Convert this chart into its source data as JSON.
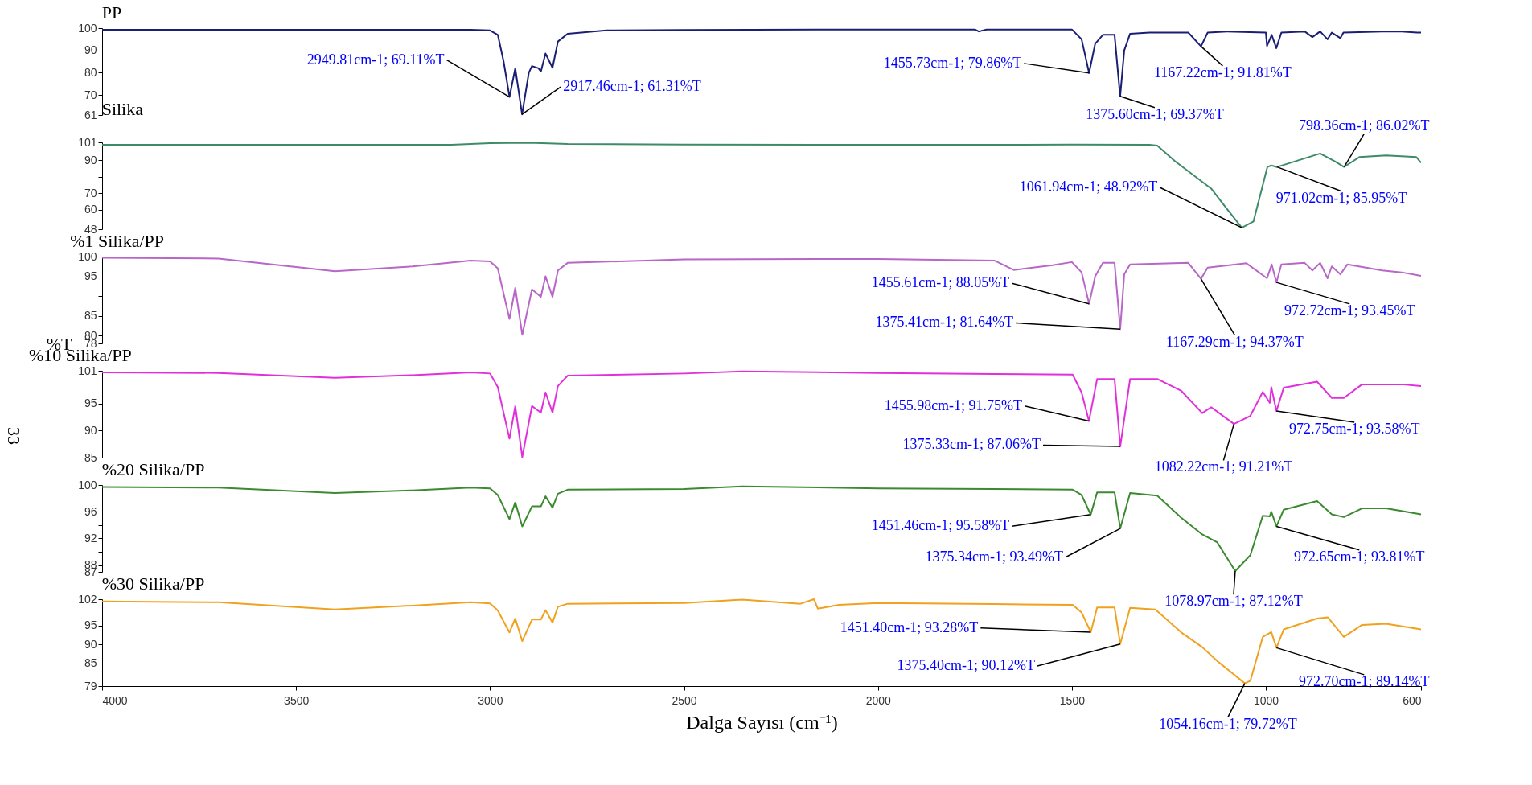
{
  "chart_data": [
    {
      "type": "line",
      "title": "PP",
      "xlim": [
        4000,
        600
      ],
      "ylim": [
        61,
        100
      ],
      "yticks": [
        100,
        90,
        80,
        70,
        61
      ],
      "tick_labels": "y",
      "series": [
        {
          "color": "#1b1f73",
          "x": [
            4000,
            3500,
            3050,
            3000,
            2980,
            2965,
            2949.81,
            2935,
            2917.46,
            2900,
            2892,
            2875,
            2869,
            2857,
            2839,
            2825,
            2800,
            2700,
            2500,
            2000,
            1750,
            1740,
            1720,
            1500,
            1475,
            1455.73,
            1440,
            1420,
            1390,
            1375.6,
            1365,
            1350,
            1300,
            1200,
            1167.22,
            1150,
            1100,
            1000,
            997,
            985,
            973,
            960,
            900,
            880,
            860,
            841,
            830,
            808,
            800,
            700,
            650,
            610,
            600
          ],
          "values": [
            99.3,
            99.3,
            99.3,
            99,
            97,
            85,
            69.11,
            82,
            61.31,
            80,
            83,
            82,
            80.5,
            88.6,
            82.2,
            94,
            97.5,
            99,
            99.2,
            99.4,
            99.4,
            98.5,
            99.4,
            99.4,
            95,
            79.86,
            93,
            97,
            97,
            69.37,
            90,
            97.5,
            98,
            98,
            91.81,
            98,
            98.5,
            98,
            92,
            97,
            91,
            98,
            98.5,
            96,
            98.5,
            95,
            98,
            95.5,
            98,
            98.5,
            98.5,
            98,
            98
          ]
        }
      ],
      "annotations": [
        {
          "text": "2949.81cm-1; 69.11%T",
          "x": 2949.81,
          "y": 69.11
        },
        {
          "text": "2917.46cm-1; 61.31%T",
          "x": 2917.46,
          "y": 61.31
        },
        {
          "text": "1455.73cm-1; 79.86%T",
          "x": 1455.73,
          "y": 79.86
        },
        {
          "text": "1375.60cm-1; 69.37%T",
          "x": 1375.6,
          "y": 69.37
        },
        {
          "text": "1167.22cm-1; 91.81%T",
          "x": 1167.22,
          "y": 91.81
        }
      ]
    },
    {
      "type": "line",
      "title": "Silika",
      "xlim": [
        4000,
        600
      ],
      "ylim": [
        48,
        101
      ],
      "yticks": [
        101,
        90,
        {
          "value": 80,
          "label": null
        },
        70,
        60,
        48
      ],
      "tick_labels": "y",
      "series": [
        {
          "color": "#3e8b68",
          "x": [
            4000,
            3100,
            3000,
            2900,
            2800,
            2500,
            2000,
            1500,
            1300,
            1280,
            1234,
            1141,
            1109,
            1061.94,
            1032,
            996,
            986,
            971.02,
            860,
            823,
            798.36,
            759,
            690,
            612,
            600
          ],
          "values": [
            99.5,
            99.5,
            100.5,
            100.8,
            100,
            99.6,
            99.5,
            99.6,
            99.5,
            99,
            89.5,
            72.8,
            63,
            48.92,
            52.7,
            86,
            86.9,
            85.95,
            94.2,
            89.5,
            86.02,
            92,
            93,
            92,
            88.5
          ]
        }
      ],
      "annotations": [
        {
          "text": "1061.94cm-1; 48.92%T",
          "x": 1061.94,
          "y": 48.92
        },
        {
          "text": "971.02cm-1; 85.95%T",
          "x": 971.02,
          "y": 85.95
        },
        {
          "text": "798.36cm-1; 86.02%T",
          "x": 798.36,
          "y": 86.02
        }
      ]
    },
    {
      "type": "line",
      "title": "%1 Silika/PP",
      "ylabel": "%T",
      "xlim": [
        4000,
        600
      ],
      "ylim": [
        78,
        100
      ],
      "yticks": [
        100,
        95,
        {
          "value": 90,
          "label": null
        },
        85,
        80,
        78
      ],
      "tick_labels": "y",
      "series": [
        {
          "color": "#b866c8",
          "x": [
            4000,
            3700,
            3400,
            3200,
            3050,
            3000,
            2980,
            2950,
            2935,
            2917,
            2892,
            2869,
            2857,
            2839,
            2825,
            2800,
            2500,
            2000,
            1700,
            1650,
            1550,
            1500,
            1475,
            1455.61,
            1440,
            1420,
            1390,
            1375.41,
            1365,
            1350,
            1200,
            1167.29,
            1150,
            1050,
            997,
            985,
            972.72,
            960,
            900,
            880,
            860,
            841,
            830,
            808,
            790,
            700,
            650,
            600
          ],
          "values": [
            99.7,
            99.5,
            96.3,
            97.5,
            99,
            98.8,
            97,
            84.2,
            92.1,
            80.2,
            91.7,
            89.8,
            95,
            89.8,
            96.5,
            98.4,
            99.3,
            99.4,
            99,
            96.6,
            97.8,
            98.6,
            96,
            88.05,
            95,
            98.4,
            98.4,
            81.64,
            95.5,
            98,
            98.4,
            94.37,
            97.2,
            98.3,
            94.5,
            98,
            93.45,
            98,
            98.4,
            96.5,
            98.4,
            94.5,
            97.5,
            95.5,
            98,
            96.5,
            96,
            95.1
          ]
        }
      ],
      "annotations": [
        {
          "text": "1455.61cm-1; 88.05%T",
          "x": 1455.61,
          "y": 88.05
        },
        {
          "text": "1375.41cm-1; 81.64%T",
          "x": 1375.41,
          "y": 81.64
        },
        {
          "text": "1167.29cm-1; 94.37%T",
          "x": 1167.29,
          "y": 94.37
        },
        {
          "text": "972.72cm-1; 93.45%T",
          "x": 972.72,
          "y": 93.45
        }
      ]
    },
    {
      "type": "line",
      "title": "%10 Silika/PP",
      "xlim": [
        4000,
        600
      ],
      "ylim": [
        85,
        101
      ],
      "yticks": [
        101,
        95,
        90,
        85
      ],
      "tick_labels": "y",
      "series": [
        {
          "color": "#e22fdc",
          "x": [
            4000,
            3700,
            3400,
            3200,
            3050,
            3000,
            2980,
            2950,
            2935,
            2917,
            2892,
            2869,
            2857,
            2839,
            2825,
            2800,
            2500,
            2350,
            2000,
            1700,
            1498,
            1475,
            1455.98,
            1435,
            1390,
            1375.33,
            1350,
            1280,
            1218,
            1164,
            1141,
            1082.22,
            1040,
            1008,
            990,
            986,
            972.75,
            954,
            868,
            830,
            799,
            752,
            650,
            600
          ],
          "values": [
            100.7,
            100.6,
            99.7,
            100.2,
            100.7,
            100.5,
            98,
            88.5,
            94.5,
            85.1,
            94.5,
            93.3,
            97,
            93.3,
            98.2,
            100.1,
            100.5,
            100.9,
            100.6,
            100.4,
            100.3,
            97,
            91.75,
            99.5,
            99.5,
            87.06,
            99.5,
            99.5,
            97.3,
            93.2,
            94.3,
            91.21,
            92.7,
            97.1,
            95.1,
            98,
            93.58,
            97.9,
            99,
            96,
            96,
            98.5,
            98.5,
            98.2
          ]
        }
      ],
      "annotations": [
        "33",
        {
          "text": "1455.98cm-1; 91.75%T",
          "x": 1455.98,
          "y": 91.75
        },
        {
          "text": "1375.33cm-1; 87.06%T",
          "x": 1375.33,
          "y": 87.06
        },
        {
          "text": "1082.22cm-1; 91.21%T",
          "x": 1082.22,
          "y": 91.21
        },
        {
          "text": "972.75cm-1; 93.58%T",
          "x": 972.75,
          "y": 93.58
        }
      ]
    },
    {
      "type": "line",
      "title": "%20 Silika/PP",
      "xlim": [
        4000,
        600
      ],
      "ylim": [
        87,
        100
      ],
      "yticks": [
        100,
        {
          "value": 98,
          "label": null
        },
        96,
        {
          "value": 94,
          "label": null
        },
        92,
        {
          "value": 90,
          "label": null
        },
        88,
        87
      ],
      "tick_labels": "y",
      "series": [
        {
          "color": "#3c8a30",
          "x": [
            4000,
            3700,
            3400,
            3200,
            3050,
            3000,
            2980,
            2950,
            2935,
            2917,
            2892,
            2869,
            2857,
            2839,
            2825,
            2800,
            2500,
            2350,
            2000,
            1700,
            1498,
            1475,
            1451.46,
            1435,
            1390,
            1375.34,
            1350,
            1280,
            1218,
            1164,
            1125,
            1078.97,
            1040,
            1008,
            990,
            986,
            972.65,
            954,
            868,
            830,
            799,
            752,
            690,
            600
          ],
          "values": [
            99.7,
            99.6,
            98.8,
            99.2,
            99.6,
            99.5,
            98.5,
            94.9,
            97.4,
            93.8,
            96.8,
            96.8,
            98.3,
            96.6,
            98.7,
            99.3,
            99.4,
            99.8,
            99.5,
            99.4,
            99.3,
            98.5,
            95.58,
            98.9,
            98.9,
            93.49,
            98.8,
            98.4,
            95.1,
            92.6,
            91.4,
            87.12,
            89.5,
            95.4,
            95.3,
            96,
            93.81,
            96.3,
            97.6,
            95.6,
            95.2,
            96.5,
            96.5,
            95.6
          ]
        }
      ],
      "annotations": [
        {
          "text": "1451.46cm-1; 95.58%T",
          "x": 1451.46,
          "y": 95.58
        },
        {
          "text": "1375.34cm-1; 93.49%T",
          "x": 1375.34,
          "y": 93.49
        },
        {
          "text": "1078.97cm-1; 87.12%T",
          "x": 1078.97,
          "y": 87.12
        },
        {
          "text": "972.65cm-1; 93.81%T",
          "x": 972.65,
          "y": 93.81
        }
      ]
    },
    {
      "type": "line",
      "title": "%30 Silika/PP",
      "xlabel": "Dalga Sayısı (cm⁻¹)",
      "xlim": [
        4000,
        600
      ],
      "xticks": [
        4000,
        3500,
        3000,
        2500,
        2000,
        1500,
        1000,
        600
      ],
      "ylim": [
        79,
        102
      ],
      "yticks": [
        102,
        95,
        90,
        85,
        79
      ],
      "series": [
        {
          "color": "#f0a21e",
          "x": [
            4000,
            3700,
            3400,
            3200,
            3050,
            3000,
            2980,
            2950,
            2935,
            2917,
            2892,
            2869,
            2857,
            2839,
            2825,
            2800,
            2500,
            2350,
            2200,
            2165,
            2155,
            2100,
            2000,
            1700,
            1498,
            1475,
            1451.4,
            1435,
            1390,
            1375.4,
            1350,
            1285,
            1218,
            1164,
            1125,
            1054.16,
            1040,
            1008,
            986,
            972.7,
            954,
            868,
            840,
            799,
            752,
            690,
            600
          ],
          "values": [
            101.4,
            101.2,
            99.3,
            100.3,
            101.2,
            100.9,
            99,
            93.2,
            96.9,
            90.9,
            96.6,
            96.6,
            99.1,
            95.8,
            100,
            100.8,
            101,
            101.9,
            100.8,
            102,
            99.5,
            100.5,
            101,
            100.7,
            100.5,
            98.5,
            93.28,
            99.8,
            99.8,
            90.12,
            99.7,
            99.3,
            93.2,
            89.3,
            85.6,
            79.72,
            80.4,
            92,
            93.3,
            89.14,
            94,
            96.9,
            97.2,
            92,
            95.2,
            95.5,
            94
          ]
        }
      ],
      "annotations": [
        {
          "text": "1451.40cm-1; 93.28%T",
          "x": 1451.4,
          "y": 93.28
        },
        {
          "text": "1375.40cm-1; 90.12%T",
          "x": 1375.4,
          "y": 90.12
        },
        {
          "text": "1054.16cm-1; 79.72%T",
          "x": 1054.16,
          "y": 79.72
        },
        {
          "text": "972.70cm-1; 89.14%T",
          "x": 972.7,
          "y": 89.14
        }
      ]
    }
  ]
}
